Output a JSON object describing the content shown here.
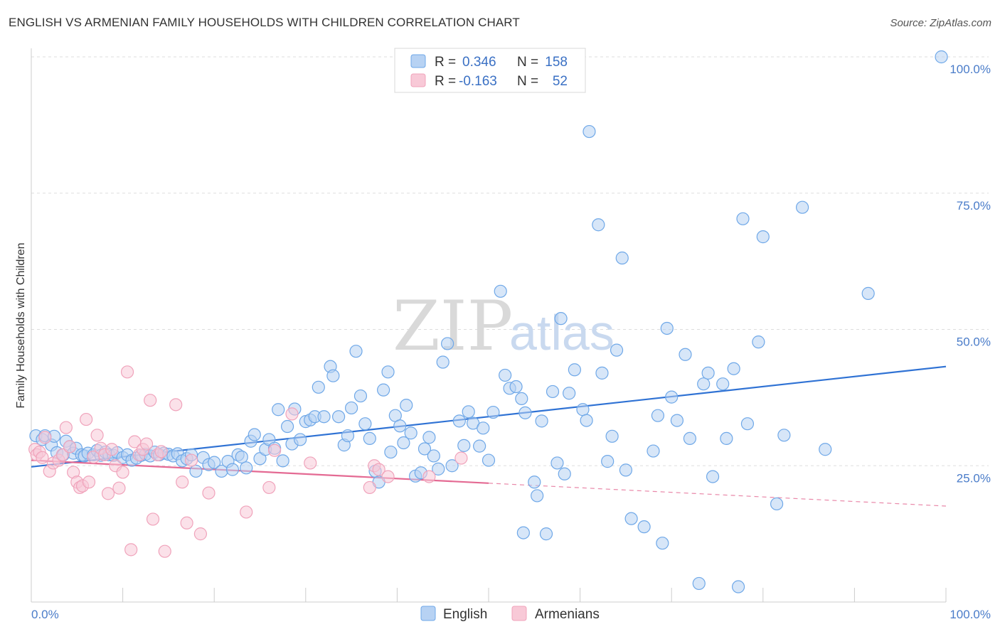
{
  "title": "ENGLISH VS ARMENIAN FAMILY HOUSEHOLDS WITH CHILDREN CORRELATION CHART",
  "source": "Source: ZipAtlas.com",
  "watermark": {
    "zip": "ZIP",
    "atlas": "atlas"
  },
  "chart_data": {
    "type": "scatter",
    "ylabel": "Family Households with Children",
    "xlabel": "",
    "xlim": [
      0,
      100
    ],
    "ylim": [
      0,
      100
    ],
    "x_tick_labels": [
      "0.0%",
      "100.0%"
    ],
    "y_ticks": [
      {
        "value": 25,
        "label": "25.0%"
      },
      {
        "value": 50,
        "label": "50.0%"
      },
      {
        "value": 75,
        "label": "75.0%"
      },
      {
        "value": 100,
        "label": "100.0%"
      }
    ],
    "grid": true,
    "legend_position": "top-center",
    "legend": [
      {
        "r_label": "R =",
        "r_value": "0.346",
        "n_label": "N =",
        "n_value": "158"
      },
      {
        "r_label": "R =",
        "r_value": "-0.163",
        "n_label": "N =",
        "n_value": "52"
      }
    ],
    "series": [
      {
        "name": "English",
        "color": "#6fa8e8",
        "fill": "#b7d2f3",
        "trend_color": "#2f72d4",
        "trend": {
          "x0": 0,
          "y0": 24.8,
          "x1": 100,
          "y1": 43.2
        },
        "points": [
          [
            0.5,
            30.5
          ],
          [
            1.2,
            29.8
          ],
          [
            1.5,
            30.5
          ],
          [
            2.2,
            28.8
          ],
          [
            2.5,
            30.4
          ],
          [
            2.8,
            27.4
          ],
          [
            3.5,
            27.0
          ],
          [
            3.8,
            29.5
          ],
          [
            4.2,
            28.5
          ],
          [
            4.6,
            27.3
          ],
          [
            4.9,
            28.2
          ],
          [
            5.5,
            27.0
          ],
          [
            5.8,
            26.8
          ],
          [
            6.2,
            27.3
          ],
          [
            6.8,
            27.0
          ],
          [
            7.2,
            27.8
          ],
          [
            7.6,
            26.9
          ],
          [
            8.1,
            27.5
          ],
          [
            8.5,
            27.0
          ],
          [
            9.0,
            26.9
          ],
          [
            9.4,
            27.4
          ],
          [
            10.0,
            26.5
          ],
          [
            10.5,
            27.0
          ],
          [
            11.0,
            26.0
          ],
          [
            11.5,
            26.4
          ],
          [
            12.0,
            26.9
          ],
          [
            12.5,
            27.1
          ],
          [
            13.0,
            26.8
          ],
          [
            13.5,
            27.5
          ],
          [
            14.0,
            27.0
          ],
          [
            14.5,
            27.3
          ],
          [
            15.0,
            27.1
          ],
          [
            15.5,
            26.8
          ],
          [
            16.0,
            27.2
          ],
          [
            16.5,
            25.9
          ],
          [
            17.0,
            26.3
          ],
          [
            17.5,
            27.0
          ],
          [
            18.0,
            24.0
          ],
          [
            18.8,
            26.5
          ],
          [
            19.4,
            25.2
          ],
          [
            20.0,
            25.6
          ],
          [
            20.8,
            24.0
          ],
          [
            21.5,
            25.8
          ],
          [
            22.0,
            24.3
          ],
          [
            22.6,
            27.0
          ],
          [
            23.0,
            26.6
          ],
          [
            23.5,
            24.6
          ],
          [
            24.0,
            29.5
          ],
          [
            24.4,
            30.7
          ],
          [
            25.0,
            26.3
          ],
          [
            25.6,
            28.0
          ],
          [
            26.0,
            29.8
          ],
          [
            26.6,
            28.2
          ],
          [
            27.0,
            35.3
          ],
          [
            27.5,
            25.9
          ],
          [
            28.0,
            32.2
          ],
          [
            28.5,
            29.0
          ],
          [
            28.8,
            35.4
          ],
          [
            29.4,
            29.8
          ],
          [
            30.0,
            33.1
          ],
          [
            30.5,
            33.4
          ],
          [
            31.0,
            34.0
          ],
          [
            31.4,
            39.4
          ],
          [
            32.0,
            34.0
          ],
          [
            32.7,
            43.2
          ],
          [
            33.0,
            41.5
          ],
          [
            33.6,
            34.0
          ],
          [
            34.2,
            28.8
          ],
          [
            34.6,
            30.5
          ],
          [
            35.0,
            35.6
          ],
          [
            35.5,
            46.0
          ],
          [
            36.0,
            37.8
          ],
          [
            36.5,
            32.7
          ],
          [
            37.0,
            30.0
          ],
          [
            37.6,
            24.0
          ],
          [
            38.0,
            22.0
          ],
          [
            38.5,
            38.9
          ],
          [
            39.0,
            42.2
          ],
          [
            39.3,
            27.5
          ],
          [
            39.8,
            34.2
          ],
          [
            40.3,
            32.3
          ],
          [
            40.7,
            29.2
          ],
          [
            41.0,
            36.1
          ],
          [
            41.5,
            31.0
          ],
          [
            42.0,
            23.1
          ],
          [
            42.6,
            23.7
          ],
          [
            43.0,
            28.1
          ],
          [
            43.5,
            30.2
          ],
          [
            44.0,
            26.8
          ],
          [
            44.5,
            24.4
          ],
          [
            45.0,
            44.0
          ],
          [
            45.5,
            47.4
          ],
          [
            46.0,
            25.0
          ],
          [
            46.8,
            33.2
          ],
          [
            47.3,
            28.7
          ],
          [
            47.8,
            34.9
          ],
          [
            48.3,
            32.8
          ],
          [
            49.0,
            28.6
          ],
          [
            49.4,
            31.9
          ],
          [
            50.0,
            26.0
          ],
          [
            50.5,
            34.8
          ],
          [
            51.3,
            57.0
          ],
          [
            51.8,
            41.6
          ],
          [
            52.3,
            39.2
          ],
          [
            53.0,
            39.5
          ],
          [
            53.6,
            37.3
          ],
          [
            54.0,
            34.7
          ],
          [
            53.8,
            12.7
          ],
          [
            55.0,
            22.0
          ],
          [
            55.3,
            19.5
          ],
          [
            55.8,
            33.2
          ],
          [
            56.3,
            12.5
          ],
          [
            57.0,
            38.6
          ],
          [
            57.5,
            25.5
          ],
          [
            57.9,
            52.0
          ],
          [
            58.3,
            23.5
          ],
          [
            58.8,
            38.3
          ],
          [
            59.4,
            42.6
          ],
          [
            60.3,
            35.3
          ],
          [
            60.7,
            33.3
          ],
          [
            61.0,
            86.3
          ],
          [
            62.0,
            69.2
          ],
          [
            62.4,
            42.0
          ],
          [
            63.0,
            25.8
          ],
          [
            63.5,
            30.4
          ],
          [
            64.0,
            46.2
          ],
          [
            64.6,
            63.1
          ],
          [
            65.0,
            24.2
          ],
          [
            65.6,
            15.3
          ],
          [
            67.0,
            13.8
          ],
          [
            68.0,
            27.7
          ],
          [
            68.5,
            34.2
          ],
          [
            69.0,
            10.8
          ],
          [
            69.5,
            50.2
          ],
          [
            70.0,
            37.6
          ],
          [
            70.6,
            33.3
          ],
          [
            71.5,
            45.4
          ],
          [
            72.0,
            30.0
          ],
          [
            73.0,
            3.4
          ],
          [
            73.5,
            40.0
          ],
          [
            74.0,
            42.0
          ],
          [
            74.5,
            23.0
          ],
          [
            75.6,
            40.0
          ],
          [
            76.0,
            30.0
          ],
          [
            76.8,
            42.8
          ],
          [
            77.3,
            2.8
          ],
          [
            77.8,
            70.3
          ],
          [
            78.3,
            32.7
          ],
          [
            79.5,
            47.7
          ],
          [
            80.0,
            67.0
          ],
          [
            81.5,
            18.0
          ],
          [
            82.3,
            30.6
          ],
          [
            84.3,
            72.4
          ],
          [
            86.8,
            28.0
          ],
          [
            91.5,
            56.6
          ],
          [
            99.5,
            100.0
          ]
        ]
      },
      {
        "name": "Armenians",
        "color": "#f0a3bb",
        "fill": "#f8c9d7",
        "trend_color": "#e46a93",
        "trend": {
          "x0": 0,
          "y0": 26.0,
          "x1": 50,
          "y1": 21.8
        },
        "trend_dashed": {
          "x0": 50,
          "y0": 21.8,
          "x1": 100,
          "y1": 17.6
        },
        "points": [
          [
            0.4,
            28.0
          ],
          [
            0.6,
            27.0
          ],
          [
            0.9,
            27.5
          ],
          [
            1.2,
            26.5
          ],
          [
            1.5,
            30.2
          ],
          [
            2.0,
            24.0
          ],
          [
            2.4,
            25.5
          ],
          [
            3.0,
            26.0
          ],
          [
            3.4,
            27.0
          ],
          [
            3.8,
            32.0
          ],
          [
            4.2,
            28.5
          ],
          [
            4.6,
            23.8
          ],
          [
            5.0,
            22.0
          ],
          [
            5.3,
            21.0
          ],
          [
            5.6,
            21.3
          ],
          [
            6.0,
            33.5
          ],
          [
            6.3,
            22.0
          ],
          [
            6.8,
            26.6
          ],
          [
            7.2,
            30.6
          ],
          [
            7.6,
            28.2
          ],
          [
            8.0,
            27.0
          ],
          [
            8.4,
            19.9
          ],
          [
            8.8,
            28.0
          ],
          [
            9.2,
            25.0
          ],
          [
            9.6,
            20.9
          ],
          [
            10.0,
            23.8
          ],
          [
            10.5,
            42.2
          ],
          [
            10.9,
            9.6
          ],
          [
            11.3,
            29.4
          ],
          [
            11.8,
            27.0
          ],
          [
            12.2,
            28.0
          ],
          [
            12.6,
            29.0
          ],
          [
            13.0,
            37.0
          ],
          [
            13.3,
            15.2
          ],
          [
            13.8,
            27.0
          ],
          [
            14.2,
            27.6
          ],
          [
            14.6,
            9.3
          ],
          [
            15.8,
            36.2
          ],
          [
            16.5,
            22.0
          ],
          [
            17.0,
            14.5
          ],
          [
            17.5,
            26.0
          ],
          [
            18.5,
            12.5
          ],
          [
            19.4,
            20.0
          ],
          [
            23.5,
            16.5
          ],
          [
            26.0,
            21.0
          ],
          [
            26.6,
            27.8
          ],
          [
            28.5,
            34.5
          ],
          [
            30.5,
            25.5
          ],
          [
            37.0,
            21.0
          ],
          [
            37.5,
            25.0
          ],
          [
            38.0,
            24.3
          ],
          [
            39.0,
            23.0
          ],
          [
            43.5,
            23.0
          ],
          [
            47.0,
            26.4
          ]
        ]
      }
    ]
  }
}
